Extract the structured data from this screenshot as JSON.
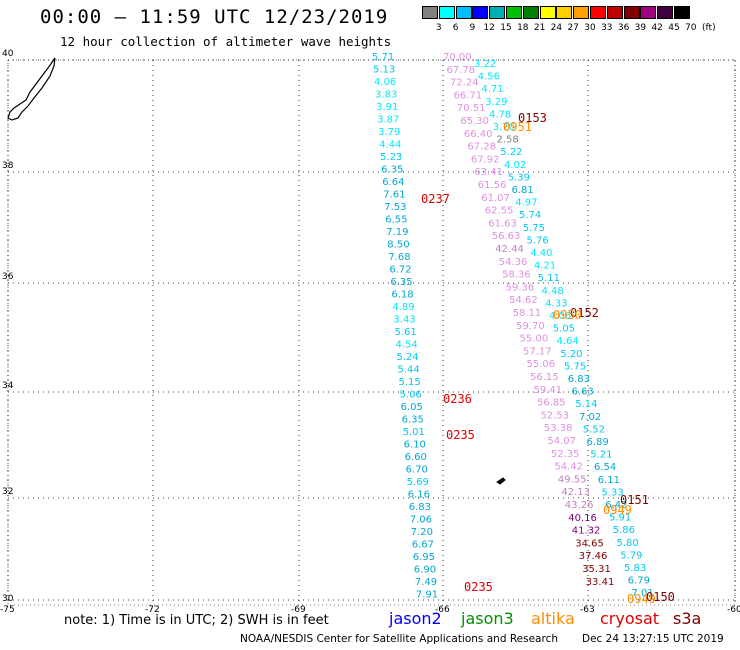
{
  "title": "00:00 – 11:59 UTC 12/23/2019",
  "subtitle": "12 hour collection of altimeter wave heights",
  "colorbar": {
    "unit_label": "(ft)",
    "ticks": [
      "3",
      "6",
      "9",
      "12",
      "15",
      "18",
      "21",
      "24",
      "27",
      "30",
      "33",
      "36",
      "39",
      "42",
      "45",
      "70"
    ],
    "colors": [
      "#808080",
      "#00ffff",
      "#00c0ff",
      "#0000ff",
      "#00b0b0",
      "#00c000",
      "#008000",
      "#ffff00",
      "#ffd000",
      "#ffa000",
      "#ff0000",
      "#c00000",
      "#800000",
      "#a00080",
      "#400040",
      "#000000"
    ]
  },
  "map": {
    "lat_labels": [
      "40",
      "38",
      "36",
      "34",
      "32",
      "30"
    ],
    "lon_labels": [
      "-75",
      "-72",
      "-69",
      "-66",
      "-63",
      "-60"
    ],
    "lat_range": [
      30,
      40
    ],
    "lon_range": [
      -75,
      -60
    ]
  },
  "tracks": [
    {
      "satellite": "jason2-like cyan track 1",
      "color_scheme": "cyan",
      "values": [
        "5.71",
        "5.13",
        "4.06",
        "3.83",
        "3.91",
        "3.87",
        "3.79",
        "4.44",
        "5.23",
        "6.35",
        "6.64",
        "7.61",
        "7.53",
        "6.55",
        "7.19",
        "8.50",
        "7.68",
        "6.72",
        "6.35",
        "6.18",
        "4.89",
        "3.43",
        "5.61",
        "4.54",
        "5.24",
        "5.44",
        "5.15",
        "5.06",
        "6.05",
        "6.35",
        "5.01",
        "6.10",
        "6.60",
        "6.70",
        "5.69",
        "6.16",
        "6.83",
        "7.06",
        "7.20",
        "6.67",
        "6.95",
        "6.90",
        "7.49",
        "7.91"
      ]
    },
    {
      "satellite": "track 2 pink",
      "color_scheme": "pink",
      "values": [
        "70.00",
        "67.78",
        "72.24",
        "66.71",
        "70.51",
        "65.30",
        "66.40",
        "67.28",
        "67.92",
        "63.41",
        "61.56",
        "61.07",
        "62.55",
        "61.63",
        "56.63",
        "42.44",
        "54.36",
        "58.36",
        "59.36",
        "54.62",
        "58.11",
        "59.70",
        "55.00",
        "57.17",
        "55.06",
        "56.15",
        "59.41",
        "56.85",
        "52.53",
        "53.38",
        "54.07",
        "52.35",
        "54.42",
        "49.55",
        "42.13",
        "43.26",
        "40.16",
        "41.32",
        "34.65",
        "37.46",
        "35.31",
        "33.41"
      ]
    },
    {
      "satellite": "track 2 cyan",
      "color_scheme": "cyan",
      "values": [
        "3.22",
        "4.56",
        "4.71",
        "3.29",
        "4.78",
        "3.70",
        "2.58",
        "5.22",
        "4.02",
        "5.39",
        "6.81",
        "4.97",
        "5.74",
        "5.75",
        "5.76",
        "4.40",
        "4.21",
        "5.11",
        "4.48",
        "4.33",
        "4.06",
        "5.05",
        "4.64",
        "5.20",
        "5.75",
        "6.83",
        "6.63",
        "5.14",
        "7.02",
        "5.52",
        "6.89",
        "5.21",
        "6.54",
        "6.11",
        "5.33",
        "6.42",
        "5.91",
        "5.86",
        "5.80",
        "5.79",
        "5.83",
        "6.79",
        "7.01"
      ]
    }
  ],
  "time_labels": [
    {
      "text": "0153",
      "color": "#800000"
    },
    {
      "text": "0951",
      "color": "#ff8c00"
    },
    {
      "text": "0237",
      "color": "#e00000"
    },
    {
      "text": "0152",
      "color": "#800000"
    },
    {
      "text": "0950",
      "color": "#ff8c00"
    },
    {
      "text": "0236",
      "color": "#e00000"
    },
    {
      "text": "0235",
      "color": "#e00000"
    },
    {
      "text": "0151",
      "color": "#800000"
    },
    {
      "text": "0949",
      "color": "#ff8c00"
    },
    {
      "text": "0235",
      "color": "#e00000"
    },
    {
      "text": "0150",
      "color": "#800000"
    },
    {
      "text": "0949",
      "color": "#ff8c00"
    }
  ],
  "note": "note:  1) Time is in UTC;  2) SWH is in feet",
  "legend": [
    {
      "name": "jason2",
      "color": "#0000ff"
    },
    {
      "name": "jason3",
      "color": "#009000"
    },
    {
      "name": "altika",
      "color": "#ff8c00"
    },
    {
      "name": "cryosat",
      "color": "#e00000"
    },
    {
      "name": "s3a",
      "color": "#800000"
    }
  ],
  "footer": "NOAA/NESDIS Center for Satellite Applications and Research",
  "footer_date": "Dec 24 13:27:15 UTC 2019"
}
